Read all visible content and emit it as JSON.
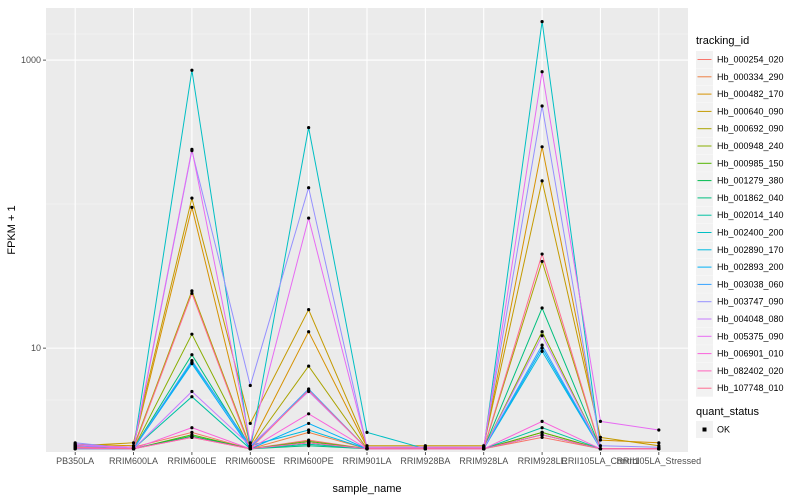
{
  "chart_data": {
    "type": "line",
    "xlabel": "sample_name",
    "ylabel": "FPKM + 1",
    "y_scale": "log10",
    "ylim": [
      1.9,
      2300
    ],
    "y_ticks": [
      10,
      1000
    ],
    "y_tick_labels": [
      "10",
      "1000"
    ],
    "grid": true,
    "legend_position": "right",
    "legend_title": "tracking_id",
    "shape_legend_title": "quant_status",
    "shape_legend_entries": [
      "OK"
    ],
    "categories": [
      "PB350LA",
      "RRIM600LA",
      "RRIM600LE",
      "RRIM600SE",
      "RRIM600PE",
      "RRIM901LA",
      "RRIM928BA",
      "RRIM928LA",
      "RRIM928LE",
      "RRII105LA_Control",
      "RRII105LA_Stressed"
    ],
    "colors": [
      "#F8766D",
      "#EE8043",
      "#D69100",
      "#C49A00",
      "#AAA300",
      "#88AD00",
      "#53B400",
      "#00BB4E",
      "#00BF7D",
      "#00C1A3",
      "#00BFC4",
      "#00BAE0",
      "#00B0F6",
      "#35A2FF",
      "#9590FF",
      "#C77CFF",
      "#E76BF3",
      "#FA62DB",
      "#FF62BC",
      "#FF6C91"
    ],
    "series": [
      {
        "name": "Hb_000254_020",
        "values": [
          2.1,
          2.05,
          2.6,
          2.0,
          2.3,
          2.0,
          2.05,
          2.0,
          2.4,
          2.0,
          2.0
        ]
      },
      {
        "name": "Hb_000334_290",
        "values": [
          2.05,
          2.0,
          2.4,
          2.0,
          2.6,
          2.0,
          2.0,
          2.0,
          2.6,
          2.0,
          2.0
        ]
      },
      {
        "name": "Hb_000482_170",
        "values": [
          2.15,
          2.1,
          95,
          2.1,
          13,
          2.05,
          2.05,
          2.05,
          250,
          2.3,
          2.2
        ]
      },
      {
        "name": "Hb_000640_090",
        "values": [
          2.1,
          2.2,
          110,
          3.0,
          18.5,
          2.1,
          2.1,
          2.1,
          145,
          2.4,
          2.1
        ]
      },
      {
        "name": "Hb_000692_090",
        "values": [
          2.1,
          2.05,
          25,
          2.05,
          7.5,
          2.0,
          2.0,
          2.0,
          40,
          2.0,
          2.0
        ]
      },
      {
        "name": "Hb_000948_240",
        "values": [
          2.05,
          2.0,
          12.5,
          2.0,
          2.2,
          2.0,
          2.0,
          2.0,
          13,
          2.0,
          2.0
        ]
      },
      {
        "name": "Hb_000985_150",
        "values": [
          2.1,
          2.0,
          2.5,
          2.0,
          2.25,
          2.0,
          2.0,
          2.0,
          2.6,
          2.0,
          2.0
        ]
      },
      {
        "name": "Hb_001279_380",
        "values": [
          2.05,
          2.0,
          2.45,
          2.0,
          2.2,
          2.0,
          2.0,
          2.0,
          2.5,
          2.0,
          2.0
        ]
      },
      {
        "name": "Hb_001862_040",
        "values": [
          2.0,
          2.0,
          9,
          2.0,
          2.1,
          2.0,
          2.0,
          2.0,
          19,
          2.0,
          2.0
        ]
      },
      {
        "name": "Hb_002014_140",
        "values": [
          2.05,
          2.0,
          4.6,
          2.0,
          2.15,
          2.0,
          2.0,
          2.0,
          2.8,
          2.0,
          2.0
        ]
      },
      {
        "name": "Hb_002400_200",
        "values": [
          2.0,
          2.0,
          850,
          2.0,
          340,
          2.6,
          2.0,
          2.0,
          1850,
          2.0,
          2.0
        ]
      },
      {
        "name": "Hb_002890_170",
        "values": [
          2.05,
          2.0,
          8,
          2.1,
          2.7,
          2.0,
          2.0,
          2.0,
          9.5,
          2.0,
          2.0
        ]
      },
      {
        "name": "Hb_002893_200",
        "values": [
          2.0,
          2.0,
          7.8,
          2.0,
          3.0,
          2.0,
          2.0,
          2.0,
          10,
          2.0,
          2.0
        ]
      },
      {
        "name": "Hb_003038_060",
        "values": [
          2.1,
          2.0,
          8.2,
          2.05,
          5.2,
          2.0,
          2.0,
          2.0,
          10.5,
          2.0,
          2.0
        ]
      },
      {
        "name": "Hb_003747_090",
        "values": [
          2.2,
          2.0,
          235,
          5.5,
          130,
          2.05,
          2.05,
          2.05,
          480,
          2.1,
          2.05
        ]
      },
      {
        "name": "Hb_004048_080",
        "values": [
          2.15,
          2.0,
          5,
          2.1,
          5.0,
          2.0,
          2.0,
          2.0,
          12.2,
          2.0,
          2.0
        ]
      },
      {
        "name": "Hb_005375_090",
        "values": [
          2.1,
          2.05,
          240,
          2.2,
          80,
          2.05,
          2.05,
          2.05,
          830,
          3.1,
          2.7
        ]
      },
      {
        "name": "Hb_006901_010",
        "values": [
          2.05,
          2.0,
          2.8,
          2.0,
          3.5,
          2.0,
          2.0,
          2.0,
          3.1,
          2.0,
          2.0
        ]
      },
      {
        "name": "Hb_082402_020",
        "values": [
          2.0,
          2.0,
          2.4,
          2.0,
          2.2,
          2.0,
          2.0,
          2.0,
          2.5,
          2.0,
          2.0
        ]
      },
      {
        "name": "Hb_107748_010",
        "values": [
          2.05,
          2.0,
          24,
          2.0,
          5.1,
          2.0,
          2.0,
          2.0,
          45,
          2.0,
          2.0
        ]
      }
    ]
  }
}
